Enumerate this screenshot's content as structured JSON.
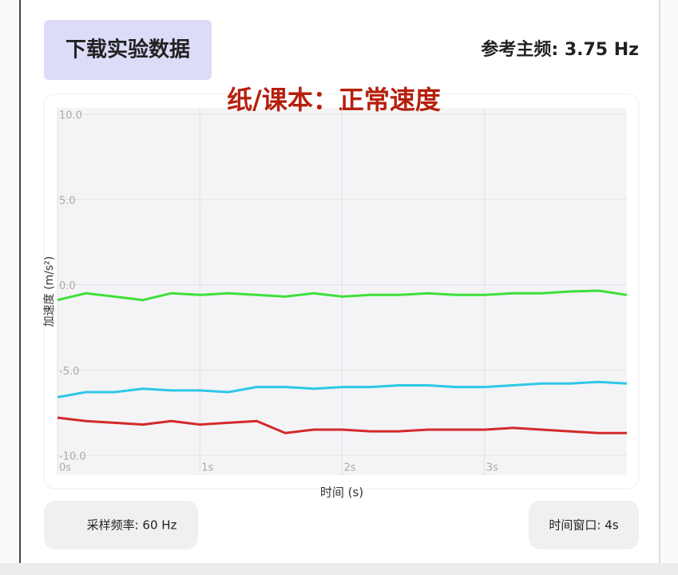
{
  "header": {
    "button": "下载实验数据",
    "frequency": "参考主频: 3.75 Hz",
    "subtitle": "纸/课本：正常速度"
  },
  "chart_data": {
    "type": "line",
    "x": [
      0,
      0.2,
      0.4,
      0.6,
      0.8,
      1.0,
      1.2,
      1.4,
      1.6,
      1.8,
      2.0,
      2.2,
      2.4,
      2.6,
      2.8,
      3.0,
      3.2,
      3.4,
      3.6,
      3.8,
      4.0
    ],
    "series": [
      {
        "color": "#3ee03a",
        "values": [
          -0.9,
          -0.5,
          -0.7,
          -0.9,
          -0.5,
          -0.6,
          -0.5,
          -0.6,
          -0.7,
          -0.5,
          -0.7,
          -0.6,
          -0.6,
          -0.5,
          -0.6,
          -0.6,
          -0.5,
          -0.5,
          -0.4,
          -0.35,
          -0.6
        ]
      },
      {
        "color": "#2ec8e6",
        "values": [
          -6.6,
          -6.3,
          -6.3,
          -6.1,
          -6.2,
          -6.2,
          -6.3,
          -6.0,
          -6.0,
          -6.1,
          -6.0,
          -6.0,
          -5.9,
          -5.9,
          -6.0,
          -6.0,
          -5.9,
          -5.8,
          -5.8,
          -5.7,
          -5.8
        ]
      },
      {
        "color": "#d42a2a",
        "values": [
          -7.8,
          -8.0,
          -8.1,
          -8.2,
          -8.0,
          -8.2,
          -8.1,
          -8.0,
          -8.7,
          -8.5,
          -8.5,
          -8.6,
          -8.6,
          -8.5,
          -8.5,
          -8.5,
          -8.4,
          -8.5,
          -8.6,
          -8.7,
          -8.7
        ]
      }
    ],
    "xlim": [
      0,
      4
    ],
    "xticks": [
      {
        "value": 0,
        "label": "0s"
      },
      {
        "value": 1,
        "label": "1s"
      },
      {
        "value": 2,
        "label": "2s"
      },
      {
        "value": 3,
        "label": "3s"
      }
    ],
    "ylim": [
      -10,
      10
    ],
    "yticks": [
      {
        "value": 10,
        "label": "10.0"
      },
      {
        "value": 5,
        "label": "5.0"
      },
      {
        "value": 0,
        "label": "0.0"
      },
      {
        "value": -5,
        "label": "-5.0"
      },
      {
        "value": -10,
        "label": "-10.0"
      }
    ],
    "xlabel": "时间 (s)",
    "ylabel": "加速度 (m/s²)",
    "grid": true
  },
  "footer": {
    "sample_rate": "采样频率: 60 Hz",
    "window": "时间窗口: 4s"
  }
}
